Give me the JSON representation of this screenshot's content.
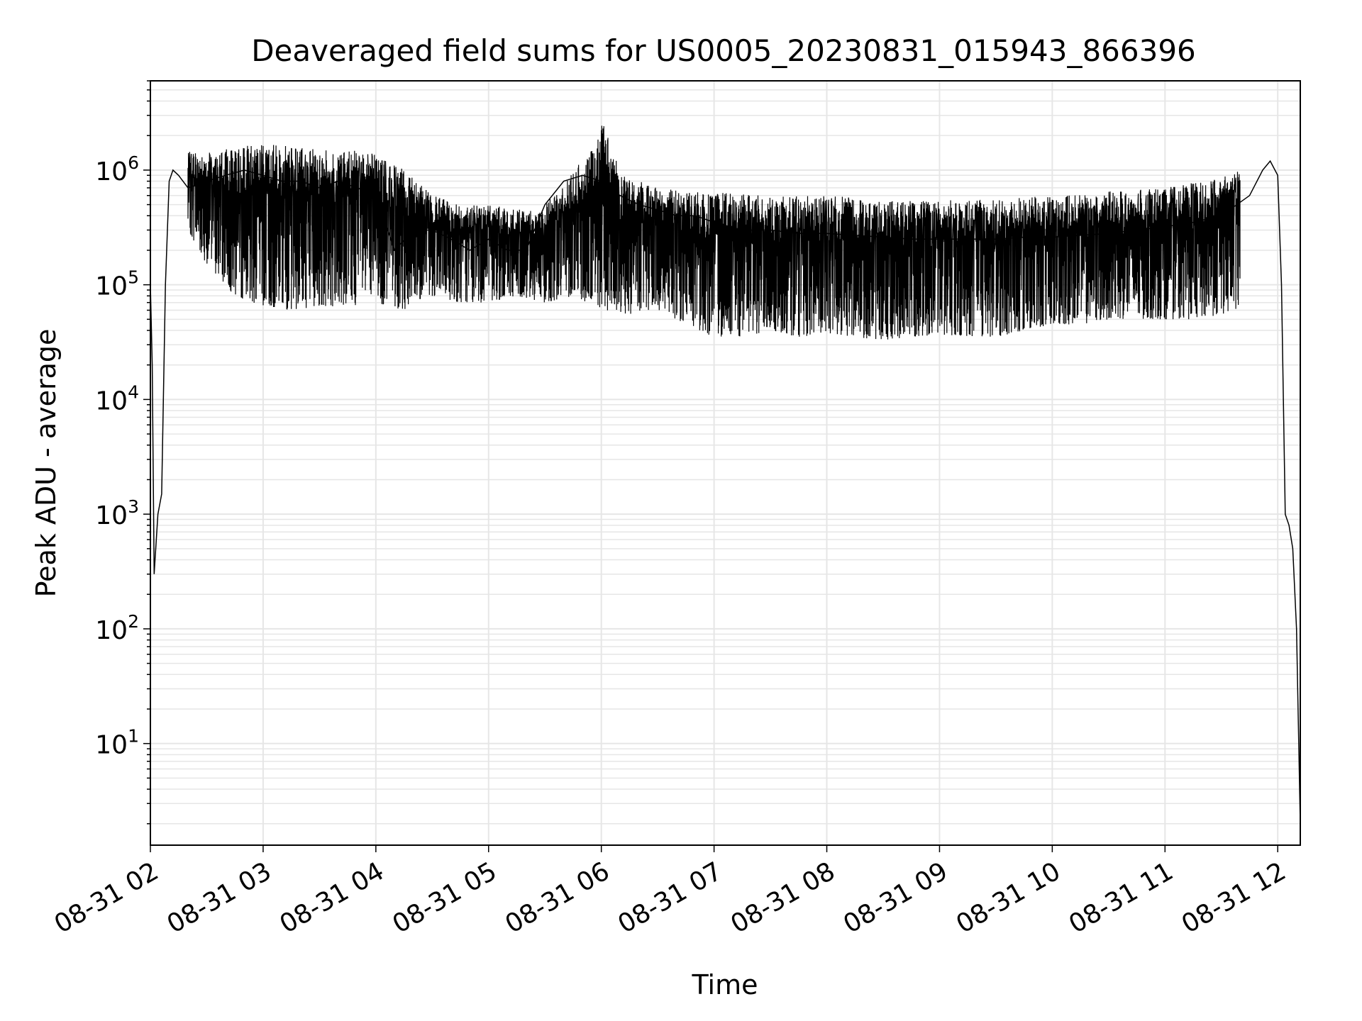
{
  "chart_data": {
    "type": "line",
    "title": "Deaveraged field sums for US0005_20230831_015943_866396",
    "xlabel": "Time",
    "ylabel": "Peak ADU - average",
    "yscale": "log",
    "ylim": [
      1.3,
      6000000
    ],
    "xlim": [
      "08-31 02:00",
      "08-31 12:12"
    ],
    "grid": true,
    "line_color": "#000000",
    "grid_color": "#e6e6e6",
    "x_ticks": [
      "08-31 02",
      "08-31 03",
      "08-31 04",
      "08-31 05",
      "08-31 06",
      "08-31 07",
      "08-31 08",
      "08-31 09",
      "08-31 10",
      "08-31 11",
      "08-31 12"
    ],
    "y_ticks": [
      {
        "base": "10",
        "exp": "1"
      },
      {
        "base": "10",
        "exp": "2"
      },
      {
        "base": "10",
        "exp": "3"
      },
      {
        "base": "10",
        "exp": "4"
      },
      {
        "base": "10",
        "exp": "5"
      },
      {
        "base": "10",
        "exp": "6"
      }
    ],
    "series": [
      {
        "x": [
          "08-31 02:00",
          "08-31 02:01",
          "08-31 02:02",
          "08-31 02:04",
          "08-31 02:06",
          "08-31 02:08",
          "08-31 02:10",
          "08-31 02:12",
          "08-31 02:15",
          "08-31 02:20",
          "08-31 02:30",
          "08-31 02:40",
          "08-31 02:50",
          "08-31 03:00",
          "08-31 03:10",
          "08-31 03:20",
          "08-31 03:30",
          "08-31 03:40",
          "08-31 03:50",
          "08-31 04:00",
          "08-31 04:10",
          "08-31 04:20",
          "08-31 04:30",
          "08-31 04:40",
          "08-31 04:50",
          "08-31 05:00",
          "08-31 05:10",
          "08-31 05:20",
          "08-31 05:30",
          "08-31 05:40",
          "08-31 05:50",
          "08-31 06:00",
          "08-31 06:10",
          "08-31 06:20",
          "08-31 06:30",
          "08-31 06:40",
          "08-31 06:50",
          "08-31 07:00",
          "08-31 07:15",
          "08-31 07:30",
          "08-31 07:45",
          "08-31 08:00",
          "08-31 08:15",
          "08-31 08:30",
          "08-31 08:45",
          "08-31 09:00",
          "08-31 09:15",
          "08-31 09:30",
          "08-31 09:45",
          "08-31 10:00",
          "08-31 10:15",
          "08-31 10:30",
          "08-31 10:45",
          "08-31 11:00",
          "08-31 11:15",
          "08-31 11:30",
          "08-31 11:45",
          "08-31 11:52",
          "08-31 11:56",
          "08-31 12:00",
          "08-31 12:02",
          "08-31 12:04",
          "08-31 12:06",
          "08-31 12:08",
          "08-31 12:10",
          "08-31 12:12"
        ],
        "y": [
          100000,
          20000,
          300,
          1000,
          1500,
          100000,
          800000,
          1000000,
          900000,
          700000,
          800000,
          900000,
          1000000,
          900000,
          800000,
          800000,
          700000,
          800000,
          700000,
          600000,
          200000,
          300000,
          300000,
          250000,
          200000,
          250000,
          200000,
          200000,
          500000,
          800000,
          900000,
          800000,
          600000,
          500000,
          450000,
          400000,
          400000,
          350000,
          300000,
          300000,
          280000,
          280000,
          270000,
          260000,
          250000,
          250000,
          250000,
          250000,
          260000,
          260000,
          270000,
          280000,
          300000,
          320000,
          350000,
          400000,
          600000,
          1000000,
          1200000,
          900000,
          100000,
          1000,
          800,
          500,
          100,
          2
        ]
      }
    ],
    "envelopes": [
      {
        "name": "upper",
        "x": [
          "08-31 02:12",
          "08-31 02:30",
          "08-31 02:45",
          "08-31 03:00",
          "08-31 03:15",
          "08-31 03:30",
          "08-31 03:45",
          "08-31 04:00",
          "08-31 04:15",
          "08-31 04:30",
          "08-31 04:45",
          "08-31 05:00",
          "08-31 05:15",
          "08-31 05:30",
          "08-31 05:45",
          "08-31 05:55",
          "08-31 06:00",
          "08-31 06:05",
          "08-31 06:10",
          "08-31 06:20",
          "08-31 06:30",
          "08-31 06:45",
          "08-31 07:00",
          "08-31 07:30",
          "08-31 08:00",
          "08-31 08:30",
          "08-31 09:00",
          "08-31 09:30",
          "08-31 10:00",
          "08-31 10:30",
          "08-31 11:00",
          "08-31 11:20",
          "08-31 11:40",
          "08-31 11:52"
        ],
        "y": [
          1500000,
          1400000,
          1600000,
          1700000,
          1600000,
          1500000,
          1500000,
          1400000,
          1000000,
          600000,
          500000,
          500000,
          450000,
          500000,
          1000000,
          1500000,
          2800000,
          2000000,
          900000,
          800000,
          700000,
          650000,
          650000,
          600000,
          600000,
          550000,
          550000,
          550000,
          600000,
          650000,
          700000,
          800000,
          1000000,
          1400000
        ]
      },
      {
        "name": "lower",
        "x": [
          "08-31 02:20",
          "08-31 02:30",
          "08-31 02:45",
          "08-31 03:00",
          "08-31 03:15",
          "08-31 03:30",
          "08-31 03:45",
          "08-31 04:00",
          "08-31 04:15",
          "08-31 04:30",
          "08-31 04:45",
          "08-31 05:00",
          "08-31 05:15",
          "08-31 05:30",
          "08-31 05:45",
          "08-31 06:00",
          "08-31 06:15",
          "08-31 06:30",
          "08-31 06:45",
          "08-31 07:00",
          "08-31 07:15",
          "08-31 07:30",
          "08-31 07:45",
          "08-31 08:00",
          "08-31 08:15",
          "08-31 08:30",
          "08-31 08:45",
          "08-31 09:00",
          "08-31 09:15",
          "08-31 09:30",
          "08-31 09:45",
          "08-31 10:00",
          "08-31 10:15",
          "08-31 10:30",
          "08-31 10:45",
          "08-31 11:00",
          "08-31 11:15",
          "08-31 11:30",
          "08-31 11:40"
        ],
        "y": [
          300000,
          150000,
          80000,
          65000,
          60000,
          65000,
          65000,
          70000,
          60000,
          80000,
          70000,
          70000,
          80000,
          70000,
          80000,
          60000,
          55000,
          60000,
          45000,
          35000,
          35000,
          40000,
          35000,
          38000,
          35000,
          33000,
          35000,
          37000,
          35000,
          35000,
          40000,
          45000,
          45000,
          50000,
          50000,
          50000,
          50000,
          55000,
          60000
        ]
      }
    ]
  }
}
